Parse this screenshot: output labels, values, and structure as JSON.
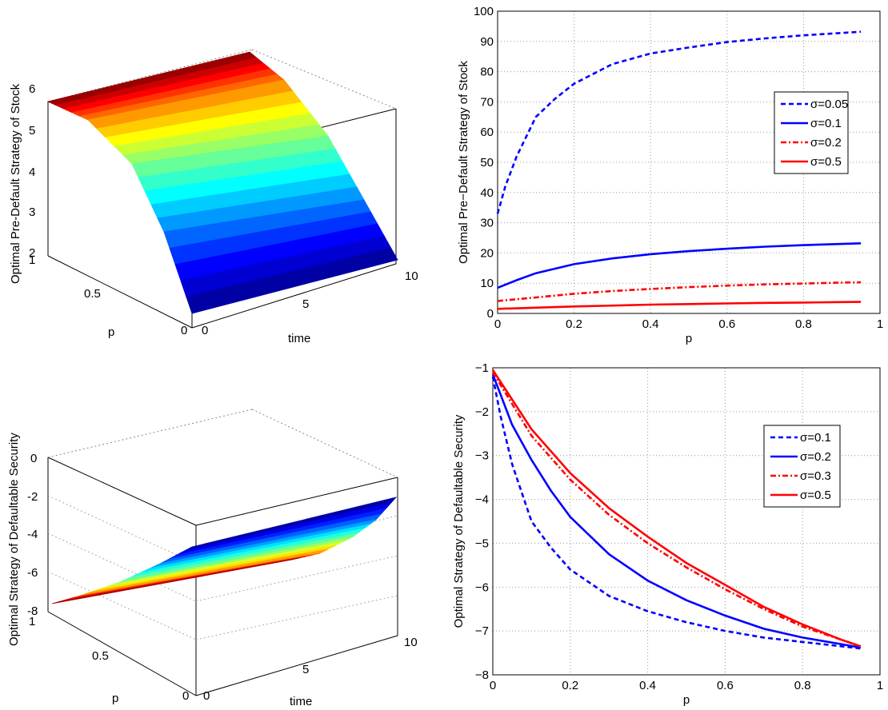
{
  "chart_data": [
    {
      "type": "surface",
      "title": "",
      "zlabel": "Optimal Pre-Default Strategy of Stock",
      "xlabel": "time",
      "ylabel": "p",
      "xlim": [
        0,
        10
      ],
      "ylim": [
        0,
        1
      ],
      "zlim": [
        2,
        6
      ],
      "x_ticks": [
        "0",
        "5",
        "10"
      ],
      "y_ticks": [
        "0",
        "0.5",
        "1"
      ],
      "z_ticks": [
        "2",
        "3",
        "4",
        "5",
        "6"
      ],
      "colormap": "jet",
      "surface": {
        "z_at_p0": 2.0,
        "z_at_p1": 5.8,
        "description_time_dependence": "nearly constant in time"
      }
    },
    {
      "type": "line",
      "title": "",
      "xlabel": "p",
      "ylabel": "Optimal Pre−Default Strategy of Stock",
      "xlim": [
        0,
        1
      ],
      "ylim": [
        0,
        100
      ],
      "x_ticks": [
        "0",
        "0.2",
        "0.4",
        "0.6",
        "0.8",
        "1"
      ],
      "y_ticks": [
        "0",
        "10",
        "20",
        "30",
        "40",
        "50",
        "60",
        "70",
        "80",
        "90",
        "100"
      ],
      "grid": true,
      "legend_position": "right",
      "series": [
        {
          "name": "σ=0.05",
          "color": "#0000ff",
          "style": "dashed",
          "x": [
            0,
            0.02,
            0.05,
            0.1,
            0.15,
            0.2,
            0.3,
            0.4,
            0.5,
            0.6,
            0.7,
            0.8,
            0.9,
            0.95
          ],
          "y": [
            33,
            42,
            52,
            65,
            71,
            76,
            82.5,
            86,
            88,
            89.8,
            91,
            92,
            92.8,
            93.2
          ]
        },
        {
          "name": "σ=0.1",
          "color": "#0000ff",
          "style": "solid",
          "x": [
            0,
            0.05,
            0.1,
            0.2,
            0.3,
            0.4,
            0.5,
            0.6,
            0.7,
            0.8,
            0.9,
            0.95
          ],
          "y": [
            8.5,
            11,
            13.3,
            16.3,
            18.2,
            19.6,
            20.6,
            21.4,
            22.1,
            22.6,
            23,
            23.2
          ]
        },
        {
          "name": "σ=0.2",
          "color": "#ff0000",
          "style": "dashdot",
          "x": [
            0,
            0.1,
            0.2,
            0.3,
            0.4,
            0.5,
            0.6,
            0.7,
            0.8,
            0.9,
            0.95
          ],
          "y": [
            4.1,
            5.3,
            6.5,
            7.4,
            8.1,
            8.7,
            9.2,
            9.6,
            9.9,
            10.2,
            10.3
          ]
        },
        {
          "name": "σ=0.5",
          "color": "#ff0000",
          "style": "solid",
          "x": [
            0,
            0.1,
            0.2,
            0.3,
            0.4,
            0.5,
            0.6,
            0.7,
            0.8,
            0.9,
            0.95
          ],
          "y": [
            1.5,
            1.9,
            2.3,
            2.6,
            2.9,
            3.1,
            3.3,
            3.5,
            3.6,
            3.75,
            3.8
          ]
        }
      ]
    },
    {
      "type": "surface",
      "title": "",
      "zlabel": "Optimal Strategy of Defaultable Security",
      "xlabel": "time",
      "ylabel": "p",
      "xlim": [
        0,
        10
      ],
      "ylim": [
        0,
        1
      ],
      "zlim": [
        -8,
        0
      ],
      "x_ticks": [
        "0",
        "5",
        "10"
      ],
      "y_ticks": [
        "0",
        "0.5",
        "1"
      ],
      "z_ticks": [
        "0",
        "-2",
        "-4",
        "-6",
        "-8"
      ],
      "colormap": "jet",
      "surface": {
        "z_at_p0": -1.5,
        "z_at_p1": -7.5,
        "description_time_dependence": "nearly constant in time"
      }
    },
    {
      "type": "line",
      "title": "",
      "xlabel": "p",
      "ylabel": "Optimal Strategy of Defaultable Security",
      "xlim": [
        0,
        1
      ],
      "ylim": [
        -8,
        -1
      ],
      "x_ticks": [
        "0",
        "0.2",
        "0.4",
        "0.6",
        "0.8",
        "1"
      ],
      "y_ticks": [
        "−1",
        "−2",
        "−3",
        "−4",
        "−5",
        "−6",
        "−7",
        "−8"
      ],
      "grid": true,
      "legend_position": "top-right",
      "series": [
        {
          "name": "σ=0.1",
          "color": "#0000ff",
          "style": "dashed",
          "x": [
            0,
            0.02,
            0.05,
            0.1,
            0.15,
            0.2,
            0.3,
            0.4,
            0.5,
            0.6,
            0.7,
            0.8,
            0.9,
            0.95
          ],
          "y": [
            -1.2,
            -2.1,
            -3.2,
            -4.5,
            -5.1,
            -5.6,
            -6.2,
            -6.55,
            -6.8,
            -7.0,
            -7.15,
            -7.25,
            -7.35,
            -7.4
          ]
        },
        {
          "name": "σ=0.2",
          "color": "#0000ff",
          "style": "solid",
          "x": [
            0,
            0.05,
            0.1,
            0.15,
            0.2,
            0.3,
            0.4,
            0.5,
            0.6,
            0.7,
            0.8,
            0.9,
            0.95
          ],
          "y": [
            -1.15,
            -2.3,
            -3.1,
            -3.8,
            -4.4,
            -5.25,
            -5.85,
            -6.3,
            -6.65,
            -6.95,
            -7.15,
            -7.3,
            -7.38
          ]
        },
        {
          "name": "σ=0.3",
          "color": "#ff0000",
          "style": "dashdot",
          "x": [
            0,
            0.1,
            0.2,
            0.3,
            0.4,
            0.5,
            0.6,
            0.7,
            0.8,
            0.9,
            0.95
          ],
          "y": [
            -1.1,
            -2.55,
            -3.55,
            -4.35,
            -5.0,
            -5.55,
            -6.05,
            -6.5,
            -6.9,
            -7.2,
            -7.35
          ]
        },
        {
          "name": "σ=0.5",
          "color": "#ff0000",
          "style": "solid",
          "x": [
            0,
            0.1,
            0.2,
            0.3,
            0.4,
            0.5,
            0.6,
            0.7,
            0.8,
            0.9,
            0.95
          ],
          "y": [
            -1.05,
            -2.4,
            -3.4,
            -4.2,
            -4.85,
            -5.45,
            -5.95,
            -6.45,
            -6.85,
            -7.2,
            -7.35
          ]
        }
      ]
    }
  ]
}
